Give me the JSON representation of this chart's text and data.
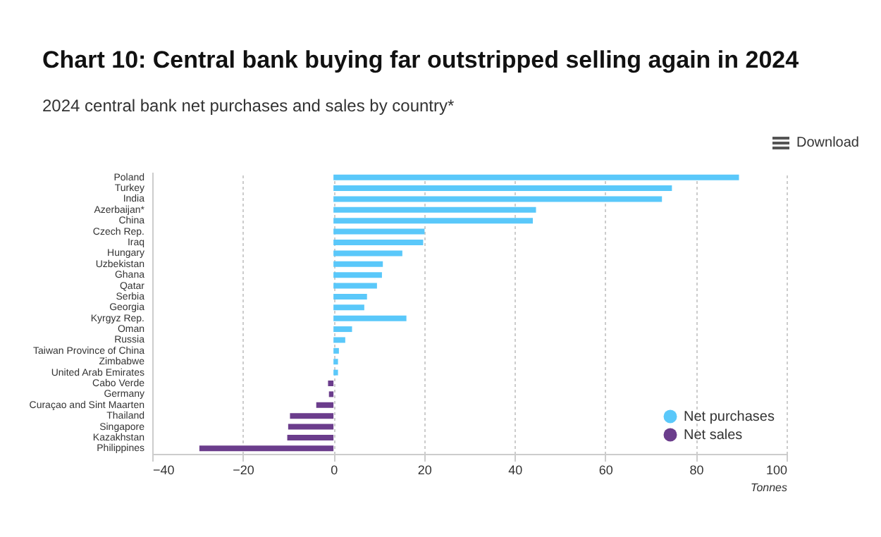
{
  "chart_data": {
    "type": "bar",
    "orientation": "horizontal",
    "title": "Chart 10: Central bank buying far outstripped selling again in 2024",
    "subtitle": "2024 central bank net purchases and sales by country*",
    "xlabel": "Tonnes",
    "annotations": [
      "Download"
    ],
    "categories": [
      "Poland",
      "Turkey",
      "India",
      "Azerbaijan*",
      "China",
      "Czech Rep.",
      "Iraq",
      "Hungary",
      "Uzbekistan",
      "Ghana",
      "Qatar",
      "Serbia",
      "Georgia",
      "Kyrgyz Rep.",
      "Oman",
      "Russia",
      "Taiwan Province of China",
      "Zimbabwe",
      "United Arab Emirates",
      "Cabo Verde",
      "Germany",
      "Curaçao and Sint Maarten",
      "Thailand",
      "Singapore",
      "Kazakhstan",
      "Philippines"
    ],
    "series": [
      {
        "name": "Net purchases",
        "color": "#5ac8fa",
        "values": [
          89.5,
          74.7,
          72.5,
          44.7,
          44,
          20.1,
          19.8,
          15.2,
          10.9,
          10.7,
          9.6,
          7.4,
          6.8,
          16.1,
          4.1,
          2.6,
          1.2,
          1,
          1,
          null,
          null,
          null,
          null,
          null,
          null,
          null
        ]
      },
      {
        "name": "Net sales",
        "color": "#6b3d8c",
        "values": [
          null,
          null,
          null,
          null,
          null,
          null,
          null,
          null,
          null,
          null,
          null,
          null,
          null,
          null,
          null,
          null,
          null,
          null,
          null,
          -1.2,
          -1,
          -3.8,
          -9.6,
          -10,
          -10.2,
          -29.6
        ]
      }
    ],
    "xlim": [
      -40,
      100
    ],
    "xticks": [
      -40,
      -20,
      0,
      20,
      40,
      60,
      80,
      100
    ],
    "grid": "x",
    "legend": "bottom right"
  }
}
